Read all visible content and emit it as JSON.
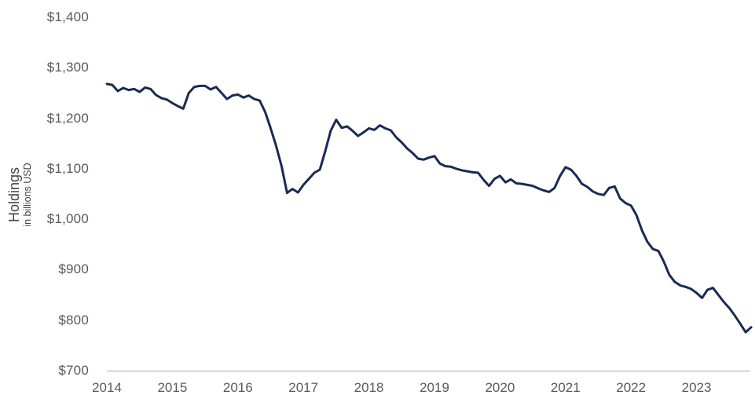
{
  "chart_data": {
    "type": "line",
    "title": "",
    "ylabel": "Holdings",
    "ylabel_sub": "in billions USD",
    "ylim": [
      700,
      1400
    ],
    "y_ticks": [
      "$1,400",
      "$1,300",
      "$1,200",
      "$1,100",
      "$1,000",
      "$900",
      "$800",
      "$700"
    ],
    "y_tick_values": [
      1400,
      1300,
      1200,
      1100,
      1000,
      900,
      800,
      700
    ],
    "x_ticks": [
      "2014",
      "2015",
      "2016",
      "2017",
      "2018",
      "2019",
      "2020",
      "2021",
      "2022",
      "2023"
    ],
    "x_start": "Jan 2014",
    "x_end": "Nov 2023",
    "frequency": "monthly",
    "grid": "off",
    "legend": "none",
    "series": [
      {
        "name": "Holdings in billions USD",
        "values": [
          1268,
          1266,
          1254,
          1260,
          1256,
          1258,
          1252,
          1261,
          1258,
          1246,
          1240,
          1237,
          1230,
          1224,
          1219,
          1250,
          1262,
          1264,
          1264,
          1257,
          1262,
          1250,
          1238,
          1245,
          1247,
          1241,
          1245,
          1238,
          1235,
          1212,
          1180,
          1145,
          1105,
          1052,
          1060,
          1053,
          1068,
          1080,
          1092,
          1098,
          1135,
          1175,
          1197,
          1181,
          1184,
          1175,
          1165,
          1172,
          1180,
          1177,
          1186,
          1180,
          1176,
          1162,
          1152,
          1140,
          1131,
          1120,
          1118,
          1122,
          1125,
          1110,
          1105,
          1104,
          1100,
          1097,
          1095,
          1093,
          1092,
          1078,
          1066,
          1080,
          1086,
          1073,
          1079,
          1071,
          1070,
          1068,
          1066,
          1061,
          1057,
          1054,
          1062,
          1086,
          1103,
          1098,
          1086,
          1070,
          1064,
          1055,
          1050,
          1048,
          1062,
          1065,
          1041,
          1032,
          1027,
          1008,
          978,
          955,
          941,
          937,
          916,
          890,
          876,
          869,
          866,
          862,
          854,
          844,
          860,
          864,
          850,
          836,
          824,
          809,
          793,
          776,
          786
        ]
      }
    ],
    "colors": {
      "line": "#1a2a55",
      "axis": "#c6c7c9",
      "tick_text": "#58595b",
      "axis_title_text": "#414244"
    }
  }
}
